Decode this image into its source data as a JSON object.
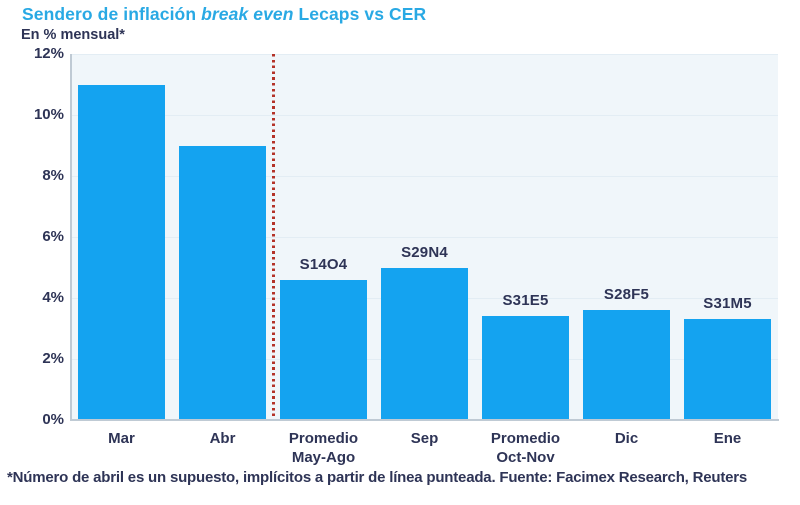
{
  "header": {
    "title_prefix": "Sendero de inflación ",
    "title_italic": "break even",
    "title_suffix": " Lecaps vs CER",
    "subtitle": "En % mensual*"
  },
  "footnote": "*Número de abril es un supuesto, implícitos a partir de línea punteada. Fuente: Facimex Research, Reuters",
  "colors": {
    "title_blue": "#29a9e4",
    "bar_blue": "#14a3f0",
    "dark_text": "#2e3456",
    "plot_bg": "#f0f6fa",
    "gridline": "#e3edf4",
    "axis_line": "#bfcad4",
    "dotted_line_red": "#b43228"
  },
  "chart_data": {
    "type": "bar",
    "title": "Sendero de inflación break even Lecaps vs CER",
    "subtitle": "En % mensual*",
    "categories": [
      "Mar",
      "Abr",
      "Promedio\nMay-Ago",
      "Sep",
      "Promedio\nOct-Nov",
      "Dic",
      "Ene"
    ],
    "values": [
      11.0,
      9.0,
      4.6,
      5.0,
      3.4,
      3.6,
      3.3
    ],
    "bar_labels": [
      "",
      "",
      "S14O4",
      "S29N4",
      "S31E5",
      "S28F5",
      "S31M5"
    ],
    "xlabel": "",
    "ylabel": "En % mensual",
    "ylim": [
      0,
      12
    ],
    "ytick_step": 2,
    "yticks": [
      "0%",
      "2%",
      "4%",
      "6%",
      "8%",
      "10%",
      "12%"
    ],
    "grid": true,
    "legend": false,
    "separator": {
      "type": "vertical-dotted-line",
      "after_category_index": 1,
      "color": "#b43228"
    }
  }
}
